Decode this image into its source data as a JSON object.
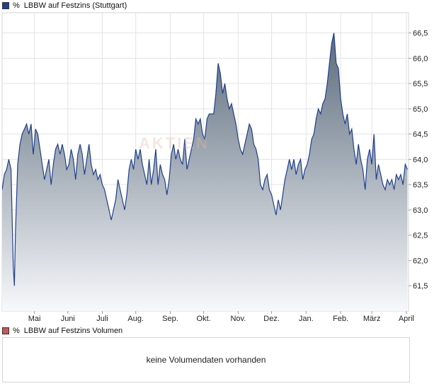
{
  "legend": {
    "price": {
      "unit": "%",
      "label": "LBBW auf Festzins (Stuttgart)",
      "color": "#1f3f8f"
    },
    "volume": {
      "unit": "%",
      "label": "LBBW auf Festzins Volumen",
      "color": "#c9555a"
    }
  },
  "watermark": "AKTIEN",
  "volume_message": "keine Volumendaten vorhanden",
  "chart_data": {
    "type": "area",
    "yticks": [
      "66,5",
      "66,0",
      "65,5",
      "65,0",
      "64,5",
      "64,0",
      "63,5",
      "63,0",
      "62,5",
      "62,0",
      "61,5"
    ],
    "ytick_values": [
      66.5,
      66.0,
      65.5,
      65.0,
      64.5,
      64.0,
      63.5,
      63.0,
      62.5,
      62.0,
      61.5
    ],
    "ylim": [
      61.0,
      66.9
    ],
    "xlim": [
      0,
      365
    ],
    "xticks": [
      {
        "label": "Mai",
        "day": 29
      },
      {
        "label": "Juni",
        "day": 59
      },
      {
        "label": "Juli",
        "day": 90
      },
      {
        "label": "Aug.",
        "day": 120
      },
      {
        "label": "Sep.",
        "day": 151
      },
      {
        "label": "Okt.",
        "day": 181
      },
      {
        "label": "Nov.",
        "day": 212
      },
      {
        "label": "Dez.",
        "day": 242
      },
      {
        "label": "Jan.",
        "day": 273
      },
      {
        "label": "Feb.",
        "day": 304
      },
      {
        "label": "März",
        "day": 332
      },
      {
        "label": "April",
        "day": 363
      }
    ],
    "grid": true,
    "line_color": "#1f3f8f",
    "fill_top": "#5b6b7b",
    "fill_bottom": "#f7f8fb",
    "series": [
      {
        "points": [
          [
            0,
            63.4
          ],
          [
            2,
            63.7
          ],
          [
            4,
            63.8
          ],
          [
            6,
            64.0
          ],
          [
            8,
            63.8
          ],
          [
            10,
            61.9
          ],
          [
            11,
            61.5
          ],
          [
            12,
            62.6
          ],
          [
            14,
            63.9
          ],
          [
            16,
            64.3
          ],
          [
            18,
            64.5
          ],
          [
            20,
            64.6
          ],
          [
            22,
            64.7
          ],
          [
            24,
            64.5
          ],
          [
            26,
            64.7
          ],
          [
            28,
            64.1
          ],
          [
            30,
            64.6
          ],
          [
            32,
            64.5
          ],
          [
            34,
            64.2
          ],
          [
            36,
            63.9
          ],
          [
            38,
            63.6
          ],
          [
            40,
            63.8
          ],
          [
            42,
            64.0
          ],
          [
            44,
            63.5
          ],
          [
            46,
            63.9
          ],
          [
            48,
            64.2
          ],
          [
            50,
            64.3
          ],
          [
            52,
            64.1
          ],
          [
            54,
            64.3
          ],
          [
            56,
            64.1
          ],
          [
            58,
            63.8
          ],
          [
            60,
            63.9
          ],
          [
            62,
            64.2
          ],
          [
            64,
            64.0
          ],
          [
            66,
            63.6
          ],
          [
            68,
            64.1
          ],
          [
            70,
            64.3
          ],
          [
            72,
            64.1
          ],
          [
            74,
            63.7
          ],
          [
            76,
            64.0
          ],
          [
            78,
            64.3
          ],
          [
            80,
            63.9
          ],
          [
            82,
            63.7
          ],
          [
            84,
            63.8
          ],
          [
            86,
            63.6
          ],
          [
            88,
            63.7
          ],
          [
            90,
            63.5
          ],
          [
            92,
            63.4
          ],
          [
            94,
            63.2
          ],
          [
            96,
            63.0
          ],
          [
            98,
            62.8
          ],
          [
            100,
            63.0
          ],
          [
            102,
            63.2
          ],
          [
            104,
            63.6
          ],
          [
            106,
            63.4
          ],
          [
            108,
            63.2
          ],
          [
            110,
            63.0
          ],
          [
            112,
            63.3
          ],
          [
            114,
            63.8
          ],
          [
            116,
            64.0
          ],
          [
            118,
            63.8
          ],
          [
            120,
            64.2
          ],
          [
            122,
            64.0
          ],
          [
            124,
            64.2
          ],
          [
            126,
            63.9
          ],
          [
            128,
            63.7
          ],
          [
            130,
            63.5
          ],
          [
            132,
            64.0
          ],
          [
            134,
            63.5
          ],
          [
            136,
            63.8
          ],
          [
            138,
            64.2
          ],
          [
            140,
            63.5
          ],
          [
            142,
            63.9
          ],
          [
            144,
            63.7
          ],
          [
            146,
            63.6
          ],
          [
            148,
            63.3
          ],
          [
            150,
            63.6
          ],
          [
            152,
            64.1
          ],
          [
            154,
            64.3
          ],
          [
            156,
            64.0
          ],
          [
            158,
            64.2
          ],
          [
            160,
            64.0
          ],
          [
            162,
            63.9
          ],
          [
            164,
            64.4
          ],
          [
            166,
            63.8
          ],
          [
            168,
            64.0
          ],
          [
            170,
            64.2
          ],
          [
            172,
            64.4
          ],
          [
            174,
            64.8
          ],
          [
            176,
            64.7
          ],
          [
            178,
            64.8
          ],
          [
            180,
            64.5
          ],
          [
            182,
            64.4
          ],
          [
            184,
            64.8
          ],
          [
            186,
            64.9
          ],
          [
            188,
            64.9
          ],
          [
            190,
            64.9
          ],
          [
            192,
            65.3
          ],
          [
            194,
            65.9
          ],
          [
            196,
            65.7
          ],
          [
            198,
            65.3
          ],
          [
            200,
            65.5
          ],
          [
            202,
            65.2
          ],
          [
            204,
            65.0
          ],
          [
            206,
            65.1
          ],
          [
            208,
            64.9
          ],
          [
            210,
            64.7
          ],
          [
            212,
            64.4
          ],
          [
            214,
            64.2
          ],
          [
            216,
            64.1
          ],
          [
            218,
            64.3
          ],
          [
            220,
            64.5
          ],
          [
            222,
            64.7
          ],
          [
            224,
            64.6
          ],
          [
            226,
            64.3
          ],
          [
            228,
            64.2
          ],
          [
            230,
            64.0
          ],
          [
            232,
            63.5
          ],
          [
            234,
            63.4
          ],
          [
            236,
            63.6
          ],
          [
            238,
            63.7
          ],
          [
            240,
            63.4
          ],
          [
            242,
            63.3
          ],
          [
            244,
            63.1
          ],
          [
            246,
            62.9
          ],
          [
            248,
            63.2
          ],
          [
            250,
            63.0
          ],
          [
            252,
            63.3
          ],
          [
            254,
            63.6
          ],
          [
            256,
            63.8
          ],
          [
            258,
            64.0
          ],
          [
            260,
            63.8
          ],
          [
            262,
            64.0
          ],
          [
            264,
            63.7
          ],
          [
            266,
            63.9
          ],
          [
            268,
            64.0
          ],
          [
            270,
            63.6
          ],
          [
            272,
            63.8
          ],
          [
            274,
            63.9
          ],
          [
            276,
            64.1
          ],
          [
            278,
            64.4
          ],
          [
            280,
            64.5
          ],
          [
            282,
            64.8
          ],
          [
            284,
            65.0
          ],
          [
            286,
            64.9
          ],
          [
            288,
            65.1
          ],
          [
            290,
            65.2
          ],
          [
            292,
            65.5
          ],
          [
            294,
            65.9
          ],
          [
            296,
            66.3
          ],
          [
            298,
            66.5
          ],
          [
            300,
            65.9
          ],
          [
            302,
            65.8
          ],
          [
            304,
            65.2
          ],
          [
            306,
            64.9
          ],
          [
            308,
            64.7
          ],
          [
            310,
            64.9
          ],
          [
            312,
            64.5
          ],
          [
            314,
            64.6
          ],
          [
            316,
            64.2
          ],
          [
            318,
            63.9
          ],
          [
            320,
            64.3
          ],
          [
            322,
            64.0
          ],
          [
            324,
            63.8
          ],
          [
            326,
            63.4
          ],
          [
            328,
            64.0
          ],
          [
            330,
            64.2
          ],
          [
            332,
            63.9
          ],
          [
            334,
            64.5
          ],
          [
            336,
            63.6
          ],
          [
            338,
            63.9
          ],
          [
            340,
            63.7
          ],
          [
            342,
            63.5
          ],
          [
            344,
            63.4
          ],
          [
            346,
            63.6
          ],
          [
            348,
            63.5
          ],
          [
            350,
            63.6
          ],
          [
            352,
            63.4
          ],
          [
            354,
            63.7
          ],
          [
            356,
            63.6
          ],
          [
            358,
            63.7
          ],
          [
            360,
            63.5
          ],
          [
            362,
            63.9
          ],
          [
            364,
            63.8
          ]
        ]
      }
    ]
  }
}
